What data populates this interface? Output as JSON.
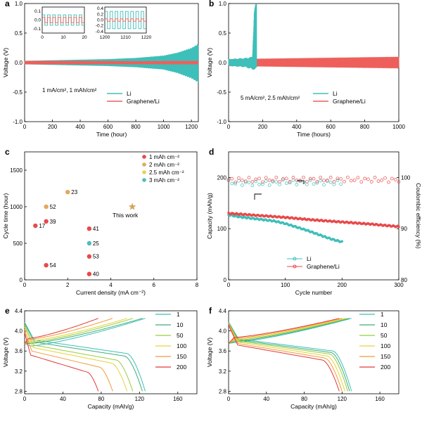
{
  "panels": [
    {
      "letter": "a",
      "type": "line",
      "xlabel": "Time (hour)",
      "ylabel": "Voltage (V)",
      "xlim": [
        0,
        1250
      ],
      "ylim": [
        -1.0,
        1.0
      ],
      "xticks": [
        "0",
        "200",
        "400",
        "600",
        "800",
        "1000",
        "1200"
      ],
      "yticks": [
        "-1.0",
        "-0.5",
        "0.0",
        "0.5",
        "1.0"
      ],
      "annotation": "1 mA/cm², 1 mAh/cm²",
      "legend": [
        {
          "name": "Li",
          "color": "#3EBFB9"
        },
        {
          "name": "Graphene/Li",
          "color": "#EE5F5B"
        }
      ],
      "series": [
        {
          "name": "Li",
          "color": "#3EBFB9",
          "x": [
            0,
            200,
            400,
            600,
            800,
            1000,
            1100,
            1200,
            1250
          ],
          "upper": [
            0.03,
            0.04,
            0.05,
            0.06,
            0.08,
            0.12,
            0.17,
            0.25,
            0.32
          ],
          "lower": [
            -0.03,
            -0.04,
            -0.05,
            -0.06,
            -0.08,
            -0.12,
            -0.18,
            -0.27,
            -0.34
          ]
        },
        {
          "name": "Graphene/Li",
          "color": "#EE5F5B",
          "x": [
            0,
            400,
            800,
            1250
          ],
          "upper": [
            0.03,
            0.03,
            0.025,
            0.03
          ],
          "lower": [
            -0.03,
            -0.03,
            -0.03,
            -0.03
          ]
        }
      ],
      "insets": [
        {
          "xticks": [
            "0",
            "10",
            "20"
          ],
          "yticks": [
            "0.1",
            "0.0",
            "-0.1"
          ],
          "xlim": [
            0,
            20
          ],
          "ylim": [
            -0.15,
            0.15
          ],
          "li_amp": 0.06,
          "gr_amp": 0.03
        },
        {
          "xticks": [
            "1200",
            "1210",
            "1220"
          ],
          "yticks": [
            "0.4",
            "0.2",
            "0.0",
            "-0.2",
            "-0.4"
          ],
          "xlim": [
            1200,
            1220
          ],
          "ylim": [
            -0.45,
            0.45
          ],
          "li_amp": 0.3,
          "gr_amp": 0.04
        }
      ]
    },
    {
      "letter": "b",
      "type": "line",
      "xlabel": "Time (hours)",
      "ylabel": "Voltage (V)",
      "xlim": [
        0,
        1000
      ],
      "ylim": [
        -1.0,
        1.0
      ],
      "xticks": [
        "0",
        "200",
        "400",
        "600",
        "800",
        "1000"
      ],
      "yticks": [
        "-1.0",
        "-0.5",
        "0.0",
        "0.5",
        "1.0"
      ],
      "annotation": "5 mA/cm², 2.5 mAh/cm²",
      "legend": [
        {
          "name": "Li",
          "color": "#3EBFB9"
        },
        {
          "name": "Graphene/Li",
          "color": "#EE5F5B"
        }
      ],
      "series": [
        {
          "name": "Li",
          "color": "#3EBFB9",
          "x": [
            0,
            100,
            140,
            150,
            165
          ],
          "upper": [
            0.06,
            0.08,
            0.1,
            1.0,
            1.0
          ],
          "lower": [
            -0.06,
            -0.08,
            -0.12,
            -0.12,
            -0.1
          ]
        },
        {
          "name": "Graphene/Li",
          "color": "#EE5F5B",
          "x": [
            0,
            500,
            1000
          ],
          "upper": [
            0.06,
            0.08,
            0.1
          ],
          "lower": [
            -0.06,
            -0.08,
            -0.1
          ]
        }
      ]
    },
    {
      "letter": "c",
      "type": "scatter",
      "xlabel": "Current density (mA cm⁻²)",
      "ylabel": "Cycle time (hour)",
      "xlim": [
        0,
        8
      ],
      "ylim": [
        0,
        1750
      ],
      "xticks": [
        "0",
        "2",
        "4",
        "6",
        "8"
      ],
      "yticks": [
        "0",
        "500",
        "1000",
        "1500"
      ],
      "legend": [
        {
          "name": "1 mAh cm⁻²",
          "color": "#E8494A"
        },
        {
          "name": "2 mAh cm⁻²",
          "color": "#E3A85C"
        },
        {
          "name": "2.5 mAh cm⁻²",
          "color": "#E6D35A"
        },
        {
          "name": "3 mAh cm⁻²",
          "color": "#4DBCC0"
        }
      ],
      "points": [
        {
          "x": 0.5,
          "y": 740,
          "label": "17",
          "color": "#E8494A"
        },
        {
          "x": 1,
          "y": 800,
          "label": "39",
          "color": "#E8494A"
        },
        {
          "x": 1,
          "y": 1000,
          "label": "52",
          "color": "#E3A85C"
        },
        {
          "x": 2,
          "y": 1200,
          "label": "23",
          "color": "#E3A85C"
        },
        {
          "x": 1,
          "y": 200,
          "label": "54",
          "color": "#E8494A"
        },
        {
          "x": 3,
          "y": 700,
          "label": "41",
          "color": "#E8494A"
        },
        {
          "x": 3,
          "y": 500,
          "label": "25",
          "color": "#4DBCC0"
        },
        {
          "x": 3,
          "y": 320,
          "label": "53",
          "color": "#E8494A"
        },
        {
          "x": 3,
          "y": 80,
          "label": "40",
          "color": "#E8494A"
        }
      ],
      "star": {
        "x": 5,
        "y": 1000,
        "label": "This work",
        "color": "#D4A55A"
      }
    },
    {
      "letter": "d",
      "type": "scatter",
      "xlabel": "Cycle number",
      "ylabel": "Capacity (mAh/g)",
      "y2label": "Coulombic efficiency (%)",
      "xlim": [
        0,
        300
      ],
      "ylim": [
        0,
        250
      ],
      "y2lim": [
        80,
        105
      ],
      "xticks": [
        "0",
        "100",
        "200",
        "300"
      ],
      "yticks": [
        "0",
        "100",
        "200"
      ],
      "y2ticks": [
        "80",
        "90",
        "100"
      ],
      "legend": [
        {
          "name": "Li",
          "color": "#3EBFB9"
        },
        {
          "name": "Graphene/Li",
          "color": "#E8494A"
        }
      ],
      "series": [
        {
          "name": "Li capacity",
          "color": "#3EBFB9",
          "x": [
            0,
            20,
            50,
            80,
            100,
            120,
            140,
            160,
            180,
            200
          ],
          "y": [
            127,
            123,
            119,
            115,
            110,
            103,
            96,
            88,
            80,
            74
          ]
        },
        {
          "name": "Graphene/Li capacity",
          "color": "#E8494A",
          "x": [
            0,
            50,
            100,
            150,
            200,
            250,
            300
          ],
          "y": [
            130,
            126,
            122,
            117,
            113,
            109,
            104
          ]
        },
        {
          "name": "Li CE",
          "color": "#3EBFB9",
          "x": [
            0,
            50,
            100,
            150,
            200
          ],
          "y": [
            99,
            98.8,
            99.1,
            99,
            99
          ]
        },
        {
          "name": "Graphene/Li CE",
          "color": "#E8494A",
          "x": [
            0,
            100,
            200,
            300
          ],
          "y": [
            99.5,
            99.6,
            99.6,
            99.5
          ]
        }
      ]
    },
    {
      "letter": "e",
      "type": "line",
      "xlabel": "Capacity (mAh/g)",
      "ylabel": "Voltage (V)",
      "xlim": [
        0,
        180
      ],
      "ylim": [
        2.75,
        4.4
      ],
      "xticks": [
        "0",
        "40",
        "80",
        "120",
        "160"
      ],
      "yticks": [
        "2.8",
        "3.2",
        "3.6",
        "4.0",
        "4.4"
      ],
      "legend": [
        {
          "name": "1",
          "color": "#3EBFB9"
        },
        {
          "name": "10",
          "color": "#3FAE7A"
        },
        {
          "name": "50",
          "color": "#9ACD3C"
        },
        {
          "name": "100",
          "color": "#E6D33A"
        },
        {
          "name": "150",
          "color": "#F29A3A"
        },
        {
          "name": "200",
          "color": "#E03A3A"
        }
      ],
      "series": [
        {
          "name": "1",
          "color": "#3EBFB9",
          "cap": 126,
          "dis_start": 4.17,
          "plateau": 3.7,
          "plat_end": 3.55,
          "ch_start": 3.65,
          "ch_end": 4.25
        },
        {
          "name": "10",
          "color": "#3FAE7A",
          "cap": 123,
          "dis_start": 4.15,
          "plateau": 3.66,
          "plat_end": 3.5,
          "ch_start": 3.7,
          "ch_end": 4.25
        },
        {
          "name": "50",
          "color": "#9ACD3C",
          "cap": 113,
          "dis_start": 4.12,
          "plateau": 3.6,
          "plat_end": 3.42,
          "ch_start": 3.72,
          "ch_end": 4.25
        },
        {
          "name": "100",
          "color": "#E6D33A",
          "cap": 107,
          "dis_start": 4.08,
          "plateau": 3.55,
          "plat_end": 3.36,
          "ch_start": 3.75,
          "ch_end": 4.25
        },
        {
          "name": "150",
          "color": "#F29A3A",
          "cap": 92,
          "dis_start": 4.03,
          "plateau": 3.48,
          "plat_end": 3.28,
          "ch_start": 3.78,
          "ch_end": 4.25
        },
        {
          "name": "200",
          "color": "#E03A3A",
          "cap": 77,
          "dis_start": 3.97,
          "plateau": 3.4,
          "plat_end": 3.18,
          "ch_start": 3.8,
          "ch_end": 4.25
        }
      ]
    },
    {
      "letter": "f",
      "type": "line",
      "xlabel": "Capacity (mAh/g)",
      "ylabel": "Voltage (V)",
      "xlim": [
        0,
        180
      ],
      "ylim": [
        2.75,
        4.4
      ],
      "xticks": [
        "0",
        "40",
        "80",
        "120",
        "160"
      ],
      "yticks": [
        "2.8",
        "3.2",
        "3.6",
        "4.0",
        "4.4"
      ],
      "legend": [
        {
          "name": "1",
          "color": "#3EBFB9"
        },
        {
          "name": "10",
          "color": "#3FAE7A"
        },
        {
          "name": "50",
          "color": "#9ACD3C"
        },
        {
          "name": "100",
          "color": "#E6D33A"
        },
        {
          "name": "150",
          "color": "#F29A3A"
        },
        {
          "name": "200",
          "color": "#E03A3A"
        }
      ],
      "series": [
        {
          "name": "1",
          "color": "#3EBFB9",
          "cap": 130,
          "dis_start": 4.18,
          "plateau": 3.72,
          "plat_end": 3.6,
          "ch_start": 3.72,
          "ch_end": 4.25
        },
        {
          "name": "10",
          "color": "#3FAE7A",
          "cap": 128,
          "dis_start": 4.17,
          "plateau": 3.7,
          "plat_end": 3.57,
          "ch_start": 3.74,
          "ch_end": 4.25
        },
        {
          "name": "50",
          "color": "#9ACD3C",
          "cap": 126,
          "dis_start": 4.16,
          "plateau": 3.68,
          "plat_end": 3.54,
          "ch_start": 3.76,
          "ch_end": 4.25
        },
        {
          "name": "100",
          "color": "#E6D33A",
          "cap": 123,
          "dis_start": 4.15,
          "plateau": 3.66,
          "plat_end": 3.5,
          "ch_start": 3.78,
          "ch_end": 4.25
        },
        {
          "name": "150",
          "color": "#F29A3A",
          "cap": 120,
          "dis_start": 4.14,
          "plateau": 3.63,
          "plat_end": 3.46,
          "ch_start": 3.8,
          "ch_end": 4.25
        },
        {
          "name": "200",
          "color": "#E03A3A",
          "cap": 117,
          "dis_start": 4.12,
          "plateau": 3.6,
          "plat_end": 3.42,
          "ch_start": 3.82,
          "ch_end": 4.25
        }
      ]
    }
  ],
  "chart_data": [
    {
      "panel": "a",
      "type": "line",
      "xlabel": "Time (hour)",
      "ylabel": "Voltage (V)",
      "xlim": [
        0,
        1250
      ],
      "ylim": [
        -1.0,
        1.0
      ],
      "series": [
        {
          "name": "Li",
          "note": "voltage envelope grows",
          "x": [
            0,
            600,
            1000,
            1250
          ],
          "y_max": [
            0.03,
            0.06,
            0.12,
            0.32
          ]
        },
        {
          "name": "Graphene/Li",
          "x": [
            0,
            1250
          ],
          "y_max": [
            0.03,
            0.03
          ]
        }
      ]
    },
    {
      "panel": "b",
      "type": "line",
      "xlabel": "Time (hours)",
      "ylabel": "Voltage (V)",
      "xlim": [
        0,
        1000
      ],
      "ylim": [
        -1.0,
        1.0
      ],
      "series": [
        {
          "name": "Li",
          "x": [
            0,
            140,
            150,
            165
          ],
          "y_max": [
            0.06,
            0.1,
            1.0,
            1.0
          ]
        },
        {
          "name": "Graphene/Li",
          "x": [
            0,
            1000
          ],
          "y_max": [
            0.06,
            0.1
          ]
        }
      ]
    },
    {
      "panel": "c",
      "type": "scatter",
      "xlabel": "Current density (mA cm⁻²)",
      "ylabel": "Cycle time (hour)",
      "points": [
        [
          0.5,
          740
        ],
        [
          1,
          800
        ],
        [
          1,
          1000
        ],
        [
          2,
          1200
        ],
        [
          1,
          200
        ],
        [
          3,
          700
        ],
        [
          3,
          500
        ],
        [
          3,
          320
        ],
        [
          3,
          80
        ],
        [
          5,
          1000
        ]
      ]
    },
    {
      "panel": "d",
      "type": "scatter",
      "xlabel": "Cycle number",
      "ylabel": "Capacity (mAh/g)",
      "series": [
        {
          "name": "Li",
          "x": [
            0,
            100,
            200
          ],
          "y": [
            127,
            110,
            74
          ]
        },
        {
          "name": "Graphene/Li",
          "x": [
            0,
            150,
            300
          ],
          "y": [
            130,
            117,
            104
          ]
        }
      ]
    },
    {
      "panel": "e",
      "type": "line",
      "xlabel": "Capacity (mAh/g)",
      "ylabel": "Voltage (V)",
      "series": [
        {
          "name": "1",
          "capacity": 126
        },
        {
          "name": "10",
          "capacity": 123
        },
        {
          "name": "50",
          "capacity": 113
        },
        {
          "name": "100",
          "capacity": 107
        },
        {
          "name": "150",
          "capacity": 92
        },
        {
          "name": "200",
          "capacity": 77
        }
      ]
    },
    {
      "panel": "f",
      "type": "line",
      "xlabel": "Capacity (mAh/g)",
      "ylabel": "Voltage (V)",
      "series": [
        {
          "name": "1",
          "capacity": 130
        },
        {
          "name": "10",
          "capacity": 128
        },
        {
          "name": "50",
          "capacity": 126
        },
        {
          "name": "100",
          "capacity": 123
        },
        {
          "name": "150",
          "capacity": 120
        },
        {
          "name": "200",
          "capacity": 117
        }
      ]
    }
  ]
}
